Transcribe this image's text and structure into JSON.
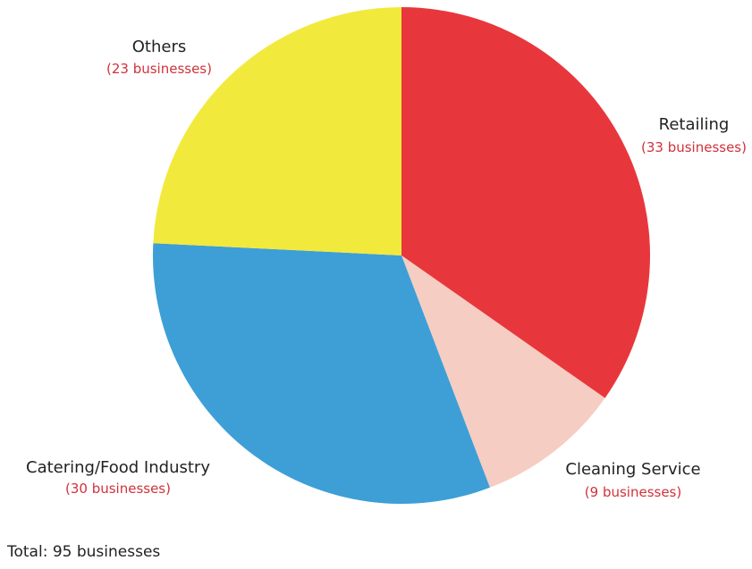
{
  "chart_data": {
    "type": "pie",
    "title": "",
    "slices": [
      {
        "label": "Retailing",
        "count_text": "(33 businesses)",
        "value": 33,
        "color": "#e8373c"
      },
      {
        "label": "Cleaning Service",
        "count_text": "(9 businesses)",
        "value": 9,
        "color": "#f6cdc2"
      },
      {
        "label": "Catering/Food Industry",
        "count_text": "(30 businesses)",
        "value": 30,
        "color": "#3d9fd6"
      },
      {
        "label": "Others",
        "count_text": "(23 businesses)",
        "value": 23,
        "color": "#f2e93d"
      }
    ],
    "start_angle_deg": 0,
    "direction": "clockwise"
  },
  "footer": {
    "total_text": "Total: 95 businesses"
  },
  "colors": {
    "label_text": "#222222",
    "count_text": "#d1323a"
  }
}
